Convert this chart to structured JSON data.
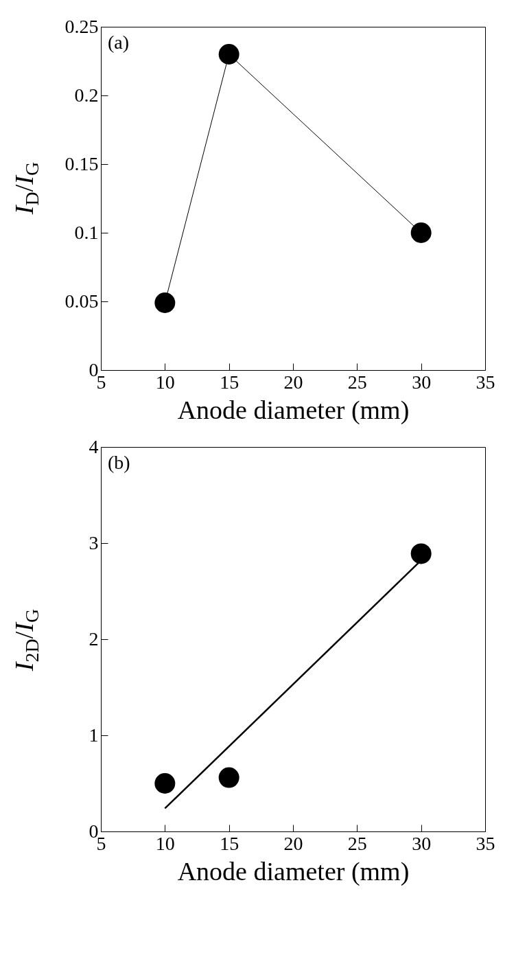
{
  "chart_data": [
    {
      "type": "line",
      "marker": "circle",
      "x": [
        10,
        15,
        30
      ],
      "xlim": [
        5,
        35
      ],
      "xticks": [
        5,
        10,
        15,
        20,
        25,
        30,
        35
      ],
      "ylim": [
        0,
        0.25
      ],
      "yticks": [
        0,
        0.05,
        0.1,
        0.15,
        0.2,
        0.25
      ],
      "xlabel": "Anode diameter (mm)",
      "ylabel": "I$_{D}$/I$_{G}$",
      "annotations": [
        "(a)"
      ],
      "series": [
        {
          "color": "#000000",
          "values": [
            0.049,
            0.23,
            0.1
          ]
        }
      ]
    },
    {
      "type": "scatter",
      "marker": "circle",
      "xlim": [
        5,
        35
      ],
      "xticks": [
        5,
        10,
        15,
        20,
        25,
        30,
        35
      ],
      "ylim": [
        0,
        4
      ],
      "yticks": [
        0,
        1,
        2,
        3,
        4
      ],
      "xlabel": "Anode diameter (mm)",
      "ylabel": "I$_{2D}$/I$_{G}$",
      "annotations": [
        "(b)"
      ],
      "series": [
        {
          "color": "#000000",
          "x": [
            10,
            15,
            30
          ],
          "values": [
            0.5,
            0.56,
            2.89
          ]
        },
        {
          "type": "line",
          "marker": "none",
          "color": "#000000",
          "x": [
            10,
            30
          ],
          "values": [
            0.24,
            2.82
          ]
        }
      ]
    }
  ]
}
